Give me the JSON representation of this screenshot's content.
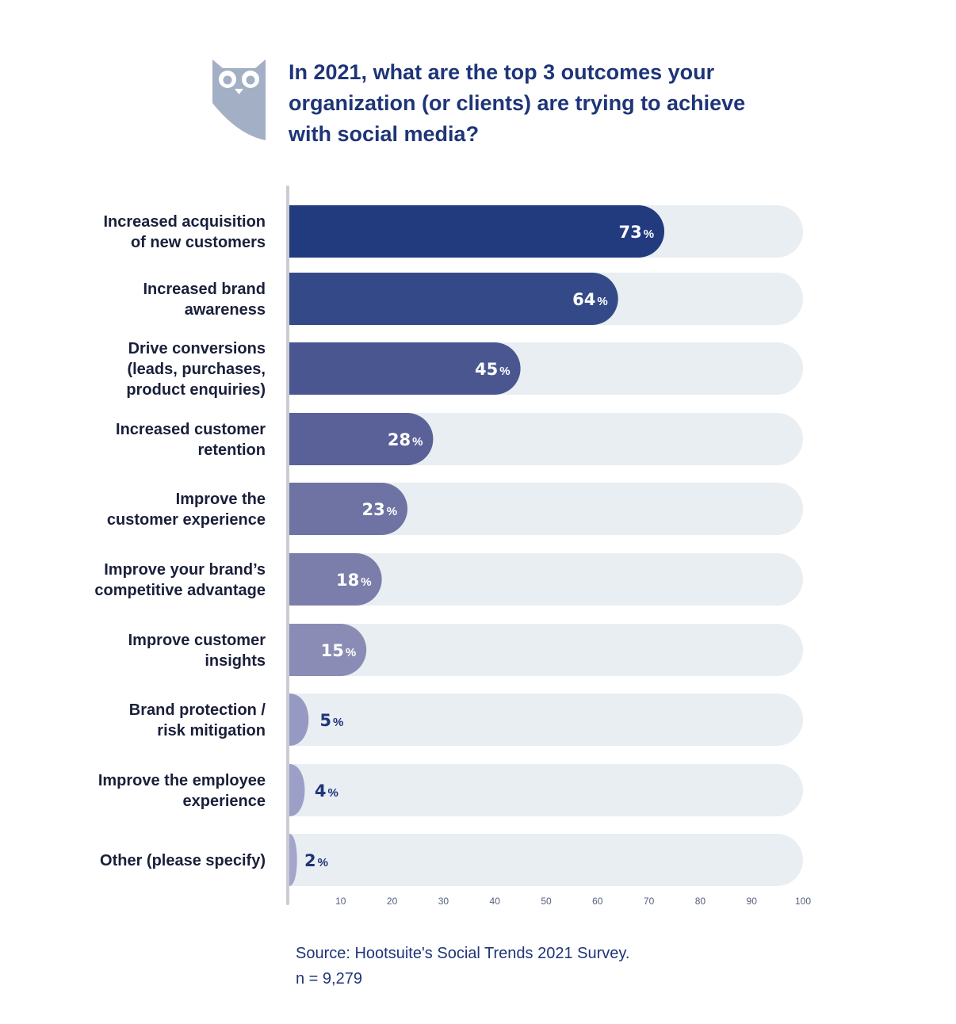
{
  "header": {
    "logo_icon": "owl-logo-icon",
    "title_lines": [
      "In 2021, what are the top 3 outcomes your",
      "organization (or clients) are trying to achieve",
      "with social media?"
    ]
  },
  "colors": {
    "track": "#e9eef2",
    "axis_line": "#c9cdd3",
    "logo": "#a3afc4",
    "bars": [
      "#223a7e",
      "#344a88",
      "#4a5690",
      "#5a6198",
      "#6e73a3",
      "#7b7dab",
      "#8a8cb6",
      "#9699c2",
      "#9da0c6",
      "#a3a6ca"
    ]
  },
  "chart_data": {
    "type": "bar",
    "orientation": "horizontal",
    "categories": [
      [
        "Increased acquisition",
        "of new customers"
      ],
      [
        "Increased brand",
        "awareness"
      ],
      [
        "Drive conversions",
        "(leads, purchases,",
        "product enquiries)"
      ],
      [
        "Increased customer",
        "retention"
      ],
      [
        "Improve the",
        "customer experience"
      ],
      [
        "Improve your brand’s",
        "competitive advantage"
      ],
      [
        "Improve customer",
        "insights"
      ],
      [
        "Brand protection /",
        "risk mitigation"
      ],
      [
        "Improve the employee",
        "experience"
      ],
      [
        "Other (please specify)"
      ]
    ],
    "values": [
      73,
      64,
      45,
      28,
      23,
      18,
      15,
      5,
      4,
      2
    ],
    "value_labels": [
      "73",
      "64",
      "45",
      "28",
      "23",
      "18",
      "15",
      "5",
      "4",
      "2"
    ],
    "unit_suffix": "%",
    "xlim": [
      0,
      100
    ],
    "x_ticks": [
      "10",
      "20",
      "30",
      "40",
      "50",
      "60",
      "70",
      "80",
      "90",
      "100"
    ],
    "grid": false,
    "legend": "none"
  },
  "footer": {
    "source": "Source:  Hootsuite's Social Trends 2021 Survey.",
    "sample": "n = 9,279"
  }
}
